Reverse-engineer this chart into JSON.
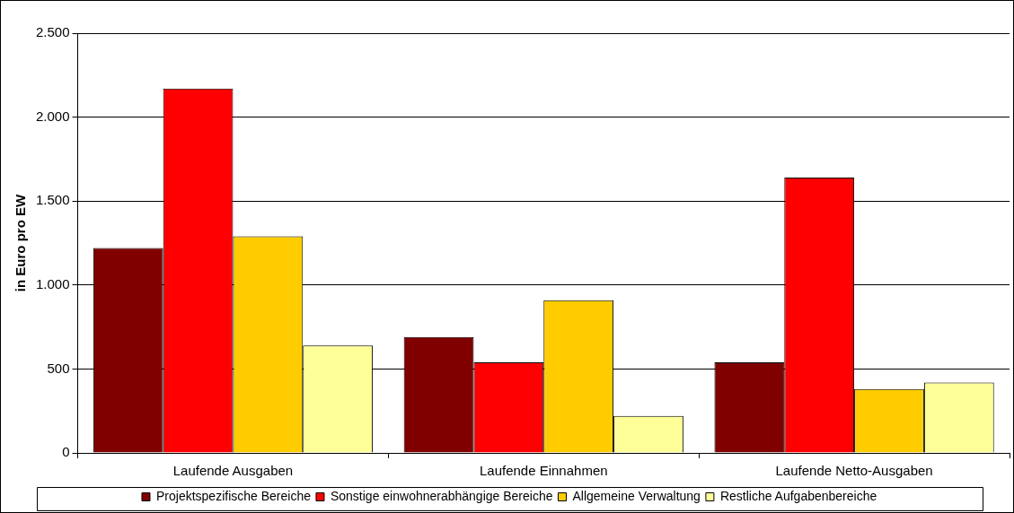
{
  "chart_data": {
    "type": "bar",
    "ylabel": "in Euro pro EW",
    "categories": [
      "Laufende Ausgaben",
      "Laufende Einnahmen",
      "Laufende Netto-Ausgaben"
    ],
    "series": [
      {
        "name": "Projektspezifische Bereiche",
        "color": "#800000",
        "values": [
          1220,
          690,
          540
        ]
      },
      {
        "name": "Sonstige einwohnerabhängige Bereiche",
        "color": "#ff0000",
        "values": [
          2170,
          540,
          1640
        ]
      },
      {
        "name": "Allgemeine Verwaltung",
        "color": "#ffcc00",
        "values": [
          1290,
          910,
          380
        ]
      },
      {
        "name": "Restliche Aufgabenbereiche",
        "color": "#ffff99",
        "values": [
          640,
          220,
          420
        ]
      }
    ],
    "ylim": [
      0,
      2500
    ],
    "yticks": [
      0,
      {
        "value": 500,
        "label": "500"
      },
      {
        "value": 1000,
        "label": "1.000"
      },
      {
        "value": 1500,
        "label": "1.500"
      },
      {
        "value": 2000,
        "label": "2.000"
      },
      {
        "value": 2500,
        "label": "2.500"
      }
    ],
    "grid": "y",
    "legend": "bottom"
  }
}
